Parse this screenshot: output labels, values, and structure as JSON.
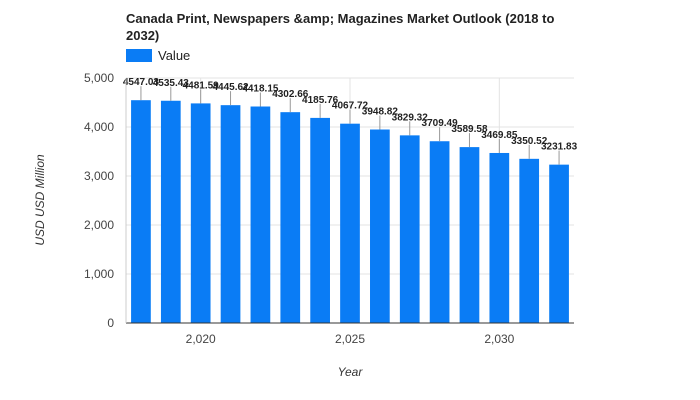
{
  "chart_data": {
    "type": "bar",
    "title_line1": "Canada Print, Newspapers &amp; Magazines Market Outlook (2018 to",
    "title_line2": "2032)",
    "legend_label": "Value",
    "bar_color": "#0a7cf5",
    "xlabel": "Year",
    "ylabel": "USD USD Million",
    "ylim": [
      0,
      5000
    ],
    "yticks": [
      0,
      1000,
      2000,
      3000,
      4000,
      5000
    ],
    "ytick_labels": [
      "0",
      "1,000",
      "2,000",
      "3,000",
      "4,000",
      "5,000"
    ],
    "xtick_labels": [
      {
        "year": 2020,
        "label": "2,020"
      },
      {
        "year": 2025,
        "label": "2,025"
      },
      {
        "year": 2030,
        "label": "2,030"
      }
    ],
    "x": [
      2018,
      2019,
      2020,
      2021,
      2022,
      2023,
      2024,
      2025,
      2026,
      2027,
      2028,
      2029,
      2030,
      2031,
      2032
    ],
    "values": [
      4547.03,
      4535.43,
      4481.59,
      4445.62,
      4418.15,
      4302.66,
      4185.76,
      4067.72,
      3948.82,
      3829.32,
      3709.49,
      3589.58,
      3469.85,
      3350.52,
      3231.83
    ],
    "value_labels": [
      "4547.03",
      "4535.43",
      "4481.59",
      "4445.62",
      "4418.15",
      "4302.66",
      "4185.76",
      "4067.72",
      "3948.82",
      "3829.32",
      "3709.49",
      "3589.58",
      "3469.85",
      "3350.52",
      "3231.83"
    ],
    "grid": true,
    "legend_position": "top-left"
  }
}
